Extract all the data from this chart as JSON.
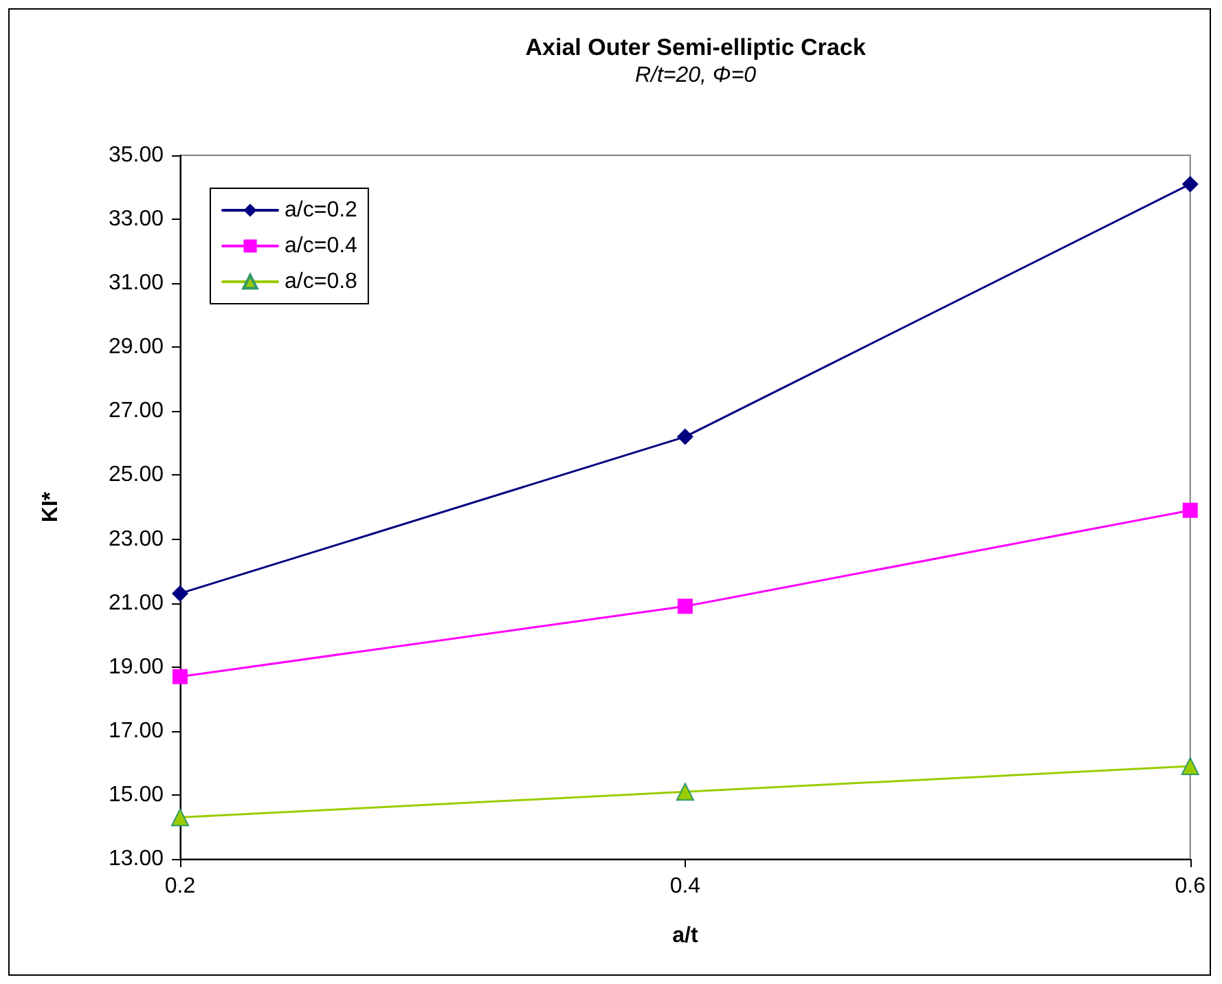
{
  "chart_data": {
    "type": "line",
    "title": "Axial Outer Semi-elliptic Crack",
    "subtitle": "R/t=20, Φ=0",
    "xlabel": "a/t",
    "ylabel": "KI*",
    "x": [
      0.2,
      0.4,
      0.6
    ],
    "series": [
      {
        "name": "a/c=0.2",
        "color": "#000080",
        "marker": "diamond",
        "values": [
          21.3,
          26.2,
          34.1
        ]
      },
      {
        "name": "a/c=0.4",
        "color": "#ff00ff",
        "marker": "square",
        "values": [
          18.7,
          20.9,
          23.9
        ]
      },
      {
        "name": "a/c=0.8",
        "color": "#99cc00",
        "marker": "triangle",
        "values": [
          14.3,
          15.1,
          15.9
        ]
      }
    ],
    "xlim": [
      0.2,
      0.6
    ],
    "xticks": [
      0.2,
      0.4,
      0.6
    ],
    "ylim": [
      13,
      35
    ],
    "yticks": [
      {
        "value": 13,
        "label": "13.00"
      },
      {
        "value": 15,
        "label": "15.00"
      },
      {
        "value": 17,
        "label": "17.00"
      },
      {
        "value": 19,
        "label": "19.00"
      },
      {
        "value": 21,
        "label": "21.00"
      },
      {
        "value": 23,
        "label": "23.00"
      },
      {
        "value": 25,
        "label": "25.00"
      },
      {
        "value": 27,
        "label": "27.00"
      },
      {
        "value": 29,
        "label": "29.00"
      },
      {
        "value": 31,
        "label": "31.00"
      },
      {
        "value": 33,
        "label": "33.00"
      },
      {
        "value": 35,
        "label": "35.00"
      }
    ],
    "grid": false,
    "legend": "top left",
    "line_style": "solid"
  }
}
